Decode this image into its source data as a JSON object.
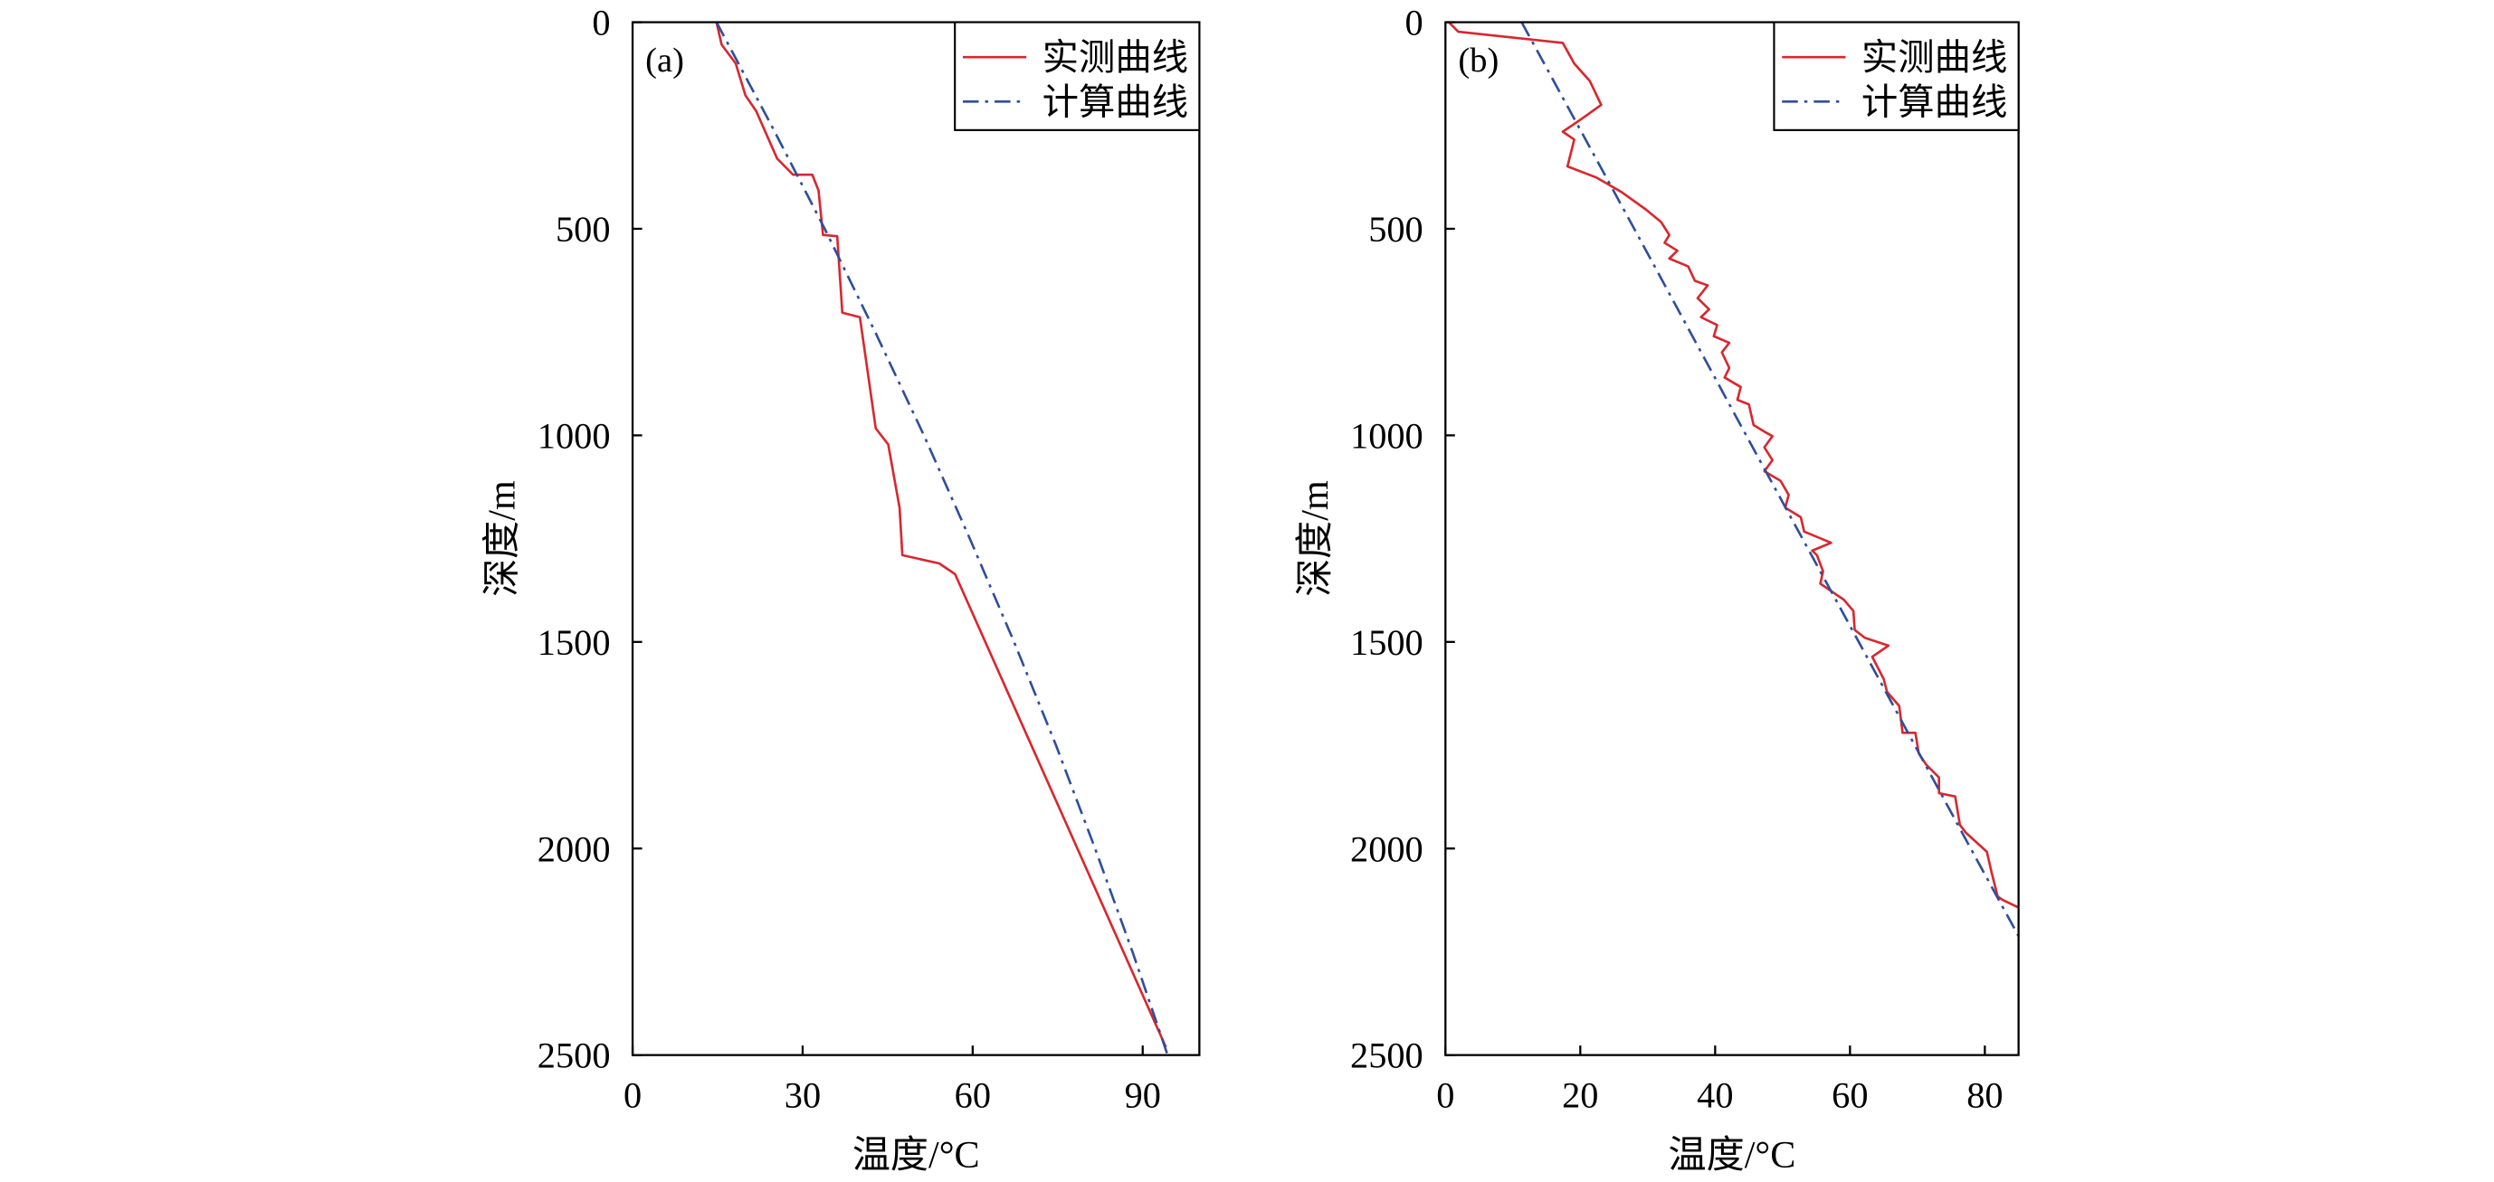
{
  "chart_data": [
    {
      "type": "line",
      "panel_label": "(a)",
      "xlabel": "温度/°C",
      "ylabel": "深度/m",
      "xlim": [
        0,
        100
      ],
      "ylim": [
        0,
        2500
      ],
      "y_inverted": true,
      "x_ticks": [
        0,
        30,
        60,
        90
      ],
      "y_ticks": [
        0,
        500,
        1000,
        1500,
        2000,
        2500
      ],
      "grid": false,
      "legend_position": "top-right",
      "series": [
        {
          "name": "实测曲线",
          "color": "#d7282f",
          "style": "solid",
          "x": [
            14.8,
            15.7,
            18.2,
            19.9,
            21.8,
            25.5,
            28.3,
            31.7,
            32.8,
            33.6,
            36.1,
            37.0,
            40.1,
            42.9,
            45.1,
            47.1,
            47.6,
            54.1,
            56.9,
            94.1
          ],
          "y": [
            0,
            54,
            100,
            177,
            215,
            330,
            369,
            369,
            407,
            515,
            518,
            703,
            714,
            983,
            1022,
            1175,
            1290,
            1310,
            1336,
            2481
          ]
        },
        {
          "name": "计算曲线",
          "color": "#2f4e9c",
          "style": "dash-dot",
          "x": [
            14.8,
            24.5,
            33.9,
            42.8,
            51.4,
            59.5,
            67.3,
            74.7,
            81.6,
            88.2,
            94.4
          ],
          "y": [
            0,
            250,
            500,
            750,
            1000,
            1250,
            1500,
            1750,
            2000,
            2250,
            2500
          ]
        }
      ]
    },
    {
      "type": "line",
      "panel_label": "(b)",
      "xlabel": "温度/°C",
      "ylabel": "深度/m",
      "xlim": [
        0,
        85
      ],
      "ylim": [
        0,
        2500
      ],
      "y_inverted": true,
      "x_ticks": [
        0,
        20,
        40,
        60,
        80
      ],
      "y_ticks": [
        0,
        500,
        1000,
        1500,
        2000,
        2500
      ],
      "grid": false,
      "legend_position": "top-right",
      "series": [
        {
          "name": "实测曲线",
          "color": "#d7282f",
          "style": "solid",
          "x": [
            0.5,
            1.9,
            17.4,
            19.1,
            21.4,
            23.1,
            20.2,
            17.4,
            19.1,
            18.1,
            22.4,
            26.1,
            29.7,
            32.0,
            33.2,
            32.5,
            34.4,
            33.2,
            36.0,
            37.0,
            38.9,
            37.4,
            39.1,
            37.9,
            40.3,
            39.8,
            42.1,
            41.0,
            42.1,
            41.4,
            43.8,
            43.3,
            45.0,
            45.7,
            47.3,
            48.5,
            47.3,
            48.5,
            47.3,
            49.7,
            50.9,
            50.4,
            52.7,
            53.2,
            57.2,
            54.4,
            55.1,
            56.0,
            55.6,
            59.1,
            60.5,
            60.7,
            62.2,
            65.7,
            63.3,
            65.0,
            65.5,
            67.3,
            67.8,
            69.7,
            70.2,
            71.3,
            73.2,
            73.2,
            75.6,
            76.3,
            77.2,
            80.3,
            81.0,
            81.9,
            82.6,
            85.0
          ],
          "y": [
            0,
            23,
            50,
            100,
            142,
            200,
            234,
            265,
            284,
            349,
            376,
            411,
            453,
            484,
            515,
            534,
            553,
            572,
            591,
            626,
            637,
            668,
            695,
            714,
            733,
            760,
            776,
            799,
            837,
            860,
            883,
            914,
            925,
            975,
            991,
            1002,
            1029,
            1060,
            1087,
            1110,
            1144,
            1175,
            1198,
            1233,
            1260,
            1279,
            1290,
            1329,
            1359,
            1398,
            1425,
            1471,
            1490,
            1509,
            1536,
            1590,
            1621,
            1655,
            1720,
            1720,
            1770,
            1797,
            1828,
            1866,
            1874,
            1943,
            1962,
            2008,
            2058,
            2116,
            2124,
            2143
          ]
        },
        {
          "name": "计算曲线",
          "color": "#2f4e9c",
          "style": "dash-dot",
          "x": [
            11.3,
            28.0,
            44.6,
            61.3,
            77.9,
            85.0
          ],
          "y": [
            0,
            500,
            1000,
            1500,
            2000,
            2212
          ]
        }
      ]
    }
  ]
}
